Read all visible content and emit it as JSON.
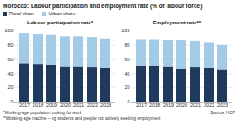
{
  "title": "Morocco: Labour participation and employment rate (% of labour force)",
  "notes": [
    "*Working-age population looking for work",
    "**Working-age inactive – eg students and people not actively seeking employment"
  ],
  "source": "Source: HCP",
  "chart_data": [
    {
      "type": "bar",
      "title": "Labour participation rate*",
      "stacked": true,
      "grid": true,
      "legend": "top",
      "categories": [
        "2017",
        "2018",
        "2019",
        "2020",
        "2021",
        "2022",
        "2023"
      ],
      "series": [
        {
          "name": "Rural share",
          "color": "#1f3a5c",
          "values": [
            54,
            53,
            52,
            50,
            50,
            48,
            47
          ]
        },
        {
          "name": "Urban share",
          "color": "#a3cbe8",
          "values": [
            42,
            42,
            42,
            42,
            42,
            43,
            42
          ]
        }
      ],
      "ylim": [
        0,
        100
      ],
      "yticks": [
        0,
        20,
        40,
        60,
        80,
        100
      ]
    },
    {
      "type": "bar",
      "title": "Employment rate**",
      "stacked": true,
      "grid": true,
      "legend": "top",
      "categories": [
        "2017",
        "2018",
        "2019",
        "2020",
        "2021",
        "2022",
        "2023"
      ],
      "series": [
        {
          "name": "Rural share",
          "color": "#1f3a5c",
          "values": [
            51,
            51,
            50,
            46,
            48,
            47,
            45
          ]
        },
        {
          "name": "Urban share",
          "color": "#a3cbe8",
          "values": [
            37,
            37,
            37,
            40,
            37,
            36,
            35
          ]
        }
      ],
      "ylim": [
        0,
        100
      ],
      "yticks": [
        0,
        20,
        40,
        60,
        80,
        100
      ]
    }
  ]
}
